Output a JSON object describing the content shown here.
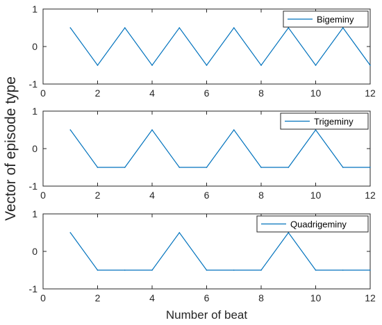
{
  "figure": {
    "xlabel": "Number of beat",
    "ylabel": "Vector of episode type"
  },
  "chart_data": [
    {
      "type": "line",
      "xlim": [
        0,
        12
      ],
      "ylim": [
        -1,
        1
      ],
      "xticks": [
        0,
        2,
        4,
        6,
        8,
        10,
        12
      ],
      "yticks": [
        -1,
        0,
        1
      ],
      "xlabel": "",
      "ylabel": "",
      "grid": false,
      "legend_position": "top-right",
      "series": [
        {
          "name": "Bigeminy",
          "x": [
            1,
            2,
            3,
            4,
            5,
            6,
            7,
            8,
            9,
            10,
            11,
            12
          ],
          "values": [
            0.5,
            -0.5,
            0.5,
            -0.5,
            0.5,
            -0.5,
            0.5,
            -0.5,
            0.5,
            -0.5,
            0.5,
            -0.5
          ]
        }
      ]
    },
    {
      "type": "line",
      "xlim": [
        0,
        12
      ],
      "ylim": [
        -1,
        1
      ],
      "xticks": [
        0,
        2,
        4,
        6,
        8,
        10,
        12
      ],
      "yticks": [
        -1,
        0,
        1
      ],
      "xlabel": "",
      "ylabel": "",
      "grid": false,
      "legend_position": "top-right",
      "series": [
        {
          "name": "Trigeminy",
          "x": [
            1,
            2,
            3,
            4,
            5,
            6,
            7,
            8,
            9,
            10,
            11,
            12
          ],
          "values": [
            0.5,
            -0.5,
            -0.5,
            0.5,
            -0.5,
            -0.5,
            0.5,
            -0.5,
            -0.5,
            0.5,
            -0.5,
            -0.5
          ]
        }
      ]
    },
    {
      "type": "line",
      "xlim": [
        0,
        12
      ],
      "ylim": [
        -1,
        1
      ],
      "xticks": [
        0,
        2,
        4,
        6,
        8,
        10,
        12
      ],
      "yticks": [
        -1,
        0,
        1
      ],
      "xlabel": "Number of beat",
      "ylabel": "",
      "grid": false,
      "legend_position": "top-right",
      "series": [
        {
          "name": "Quadrigeminy",
          "x": [
            1,
            2,
            3,
            4,
            5,
            6,
            7,
            8,
            9,
            10,
            11,
            12
          ],
          "values": [
            0.5,
            -0.5,
            -0.5,
            -0.5,
            0.5,
            -0.5,
            -0.5,
            -0.5,
            0.5,
            -0.5,
            -0.5,
            -0.5
          ]
        }
      ]
    }
  ],
  "colors": {
    "line": "#0072bd",
    "axis": "#262626",
    "background": "#ffffff"
  }
}
